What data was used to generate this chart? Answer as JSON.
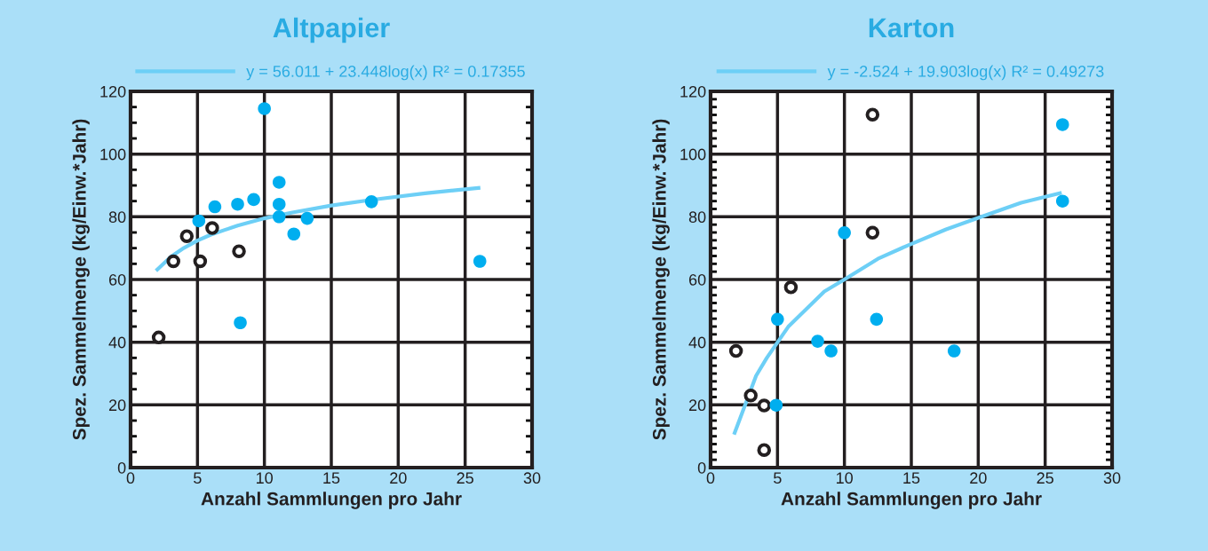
{
  "chart_data": [
    {
      "type": "scatter",
      "title": "Altpapier",
      "xlabel": "Anzahl Sammlungen pro Jahr",
      "ylabel": "Spez. Sammelmenge (kg/Einw.*Jahr)",
      "xlim": [
        0,
        30
      ],
      "xticks": [
        0,
        5,
        10,
        15,
        20,
        25,
        30
      ],
      "ylim": [
        0,
        120
      ],
      "yticks": [
        0,
        20,
        40,
        60,
        80,
        100,
        120
      ],
      "grid": true,
      "legend": "top",
      "series": [
        {
          "color": "#231f20",
          "marker": "circle",
          "x": [
            2.1,
            3.2,
            4.2,
            5.2,
            6.1,
            8.1
          ],
          "values": [
            41.5,
            65.8,
            73.8,
            65.8,
            76.4,
            69
          ]
        },
        {
          "color": "#00aeef",
          "marker": "circle",
          "x": [
            10,
            11.1,
            6.3,
            8.0,
            9.2,
            11.1,
            5.1,
            11.1,
            13.2,
            12.2,
            18.0,
            26.1,
            8.2
          ],
          "values": [
            114.5,
            91,
            83.2,
            84,
            85.5,
            84,
            78.7,
            80,
            79.5,
            74.5,
            84.8,
            65.8,
            46.2
          ]
        },
        {
          "type": "line",
          "marker": "none",
          "name": "y = 56.011 + 23.448log(x) R² = 0.17355",
          "color": "#6dcff6",
          "x": [
            2,
            3,
            4,
            5,
            6,
            8,
            10,
            12,
            15,
            18,
            22,
            26
          ],
          "values": [
            63.2,
            67.2,
            70.1,
            72.4,
            74.3,
            77.2,
            79.5,
            81.3,
            83.6,
            85.4,
            87.5,
            89.2
          ]
        }
      ]
    },
    {
      "type": "scatter",
      "title": "Karton",
      "xlabel": "Anzahl Sammlungen pro Jahr",
      "ylabel": "Spez. Sammelmenge (kg/Einw.*Jahr)",
      "xlim": [
        0,
        30
      ],
      "xticks": [
        0,
        5,
        10,
        15,
        20,
        25,
        30
      ],
      "ylim": [
        0,
        120
      ],
      "yticks": [
        0,
        20,
        40,
        60,
        80,
        100,
        120
      ],
      "grid": true,
      "legend": "top",
      "series": [
        {
          "color": "#231f20",
          "marker": "circle",
          "x": [
            12.1,
            12.1,
            6.0,
            1.9,
            3.0,
            4.0,
            4.0
          ],
          "values": [
            112.6,
            74.9,
            57.5,
            37.2,
            23.0,
            19.8,
            5.6
          ]
        },
        {
          "color": "#00aeef",
          "marker": "circle",
          "x": [
            26.3,
            26.3,
            10.0,
            5.0,
            12.4,
            8.0,
            9.0,
            18.2,
            4.9
          ],
          "values": [
            109.4,
            85,
            74.9,
            47.3,
            47.3,
            40.3,
            37.2,
            37.2,
            19.9
          ]
        },
        {
          "type": "line",
          "marker": "none",
          "name": "y = -2.524 + 19.903log(x) R² = 0.49273",
          "color": "#6dcff6",
          "x": [
            1.8,
            3.4,
            4.2,
            5.8,
            8.5,
            10,
            12.5,
            14.7,
            17.6,
            20.1,
            23.2,
            26.1
          ],
          "values": [
            11.1,
            29.3,
            35,
            44.9,
            56.2,
            60,
            66.6,
            70.8,
            76,
            79.8,
            84.5,
            87.5
          ]
        }
      ]
    }
  ]
}
